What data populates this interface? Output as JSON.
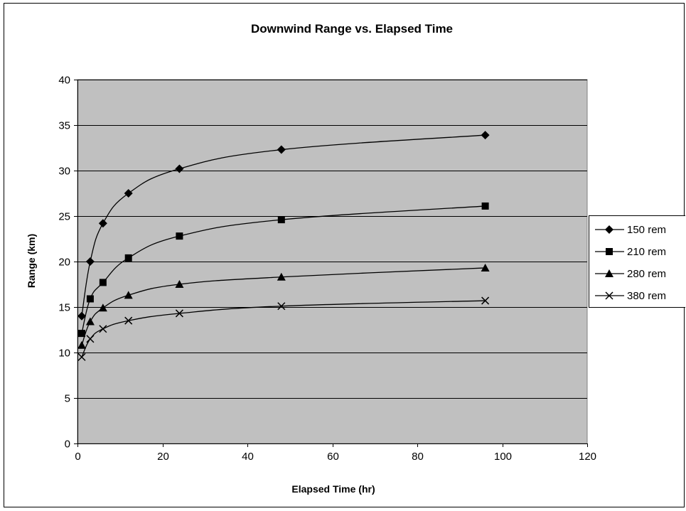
{
  "chart_data": {
    "type": "line",
    "title": "Downwind Range vs. Elapsed Time",
    "xlabel": "Elapsed Time (hr)",
    "ylabel": "Range (km)",
    "xlim": [
      0,
      120
    ],
    "ylim": [
      0,
      40
    ],
    "x_ticks": [
      0,
      20,
      40,
      60,
      80,
      100,
      120
    ],
    "y_ticks": [
      0,
      5,
      10,
      15,
      20,
      25,
      30,
      35,
      40
    ],
    "grid": "horizontal",
    "plot_background": "#c0c0c0",
    "line_color": "#000000",
    "legend_position": "right",
    "x": [
      1,
      3,
      6,
      12,
      24,
      48,
      96
    ],
    "series": [
      {
        "name": "150 rem",
        "marker": "diamond",
        "values": [
          14.0,
          20.0,
          24.2,
          27.5,
          30.2,
          32.3,
          33.9
        ]
      },
      {
        "name": "210 rem",
        "marker": "square",
        "values": [
          12.1,
          15.9,
          17.7,
          20.4,
          22.8,
          24.6,
          26.1
        ]
      },
      {
        "name": "280 rem",
        "marker": "triangle",
        "values": [
          10.8,
          13.4,
          14.9,
          16.3,
          17.5,
          18.3,
          19.3
        ]
      },
      {
        "name": "380 rem",
        "marker": "x",
        "values": [
          9.5,
          11.5,
          12.6,
          13.5,
          14.3,
          15.1,
          15.7
        ]
      }
    ]
  }
}
